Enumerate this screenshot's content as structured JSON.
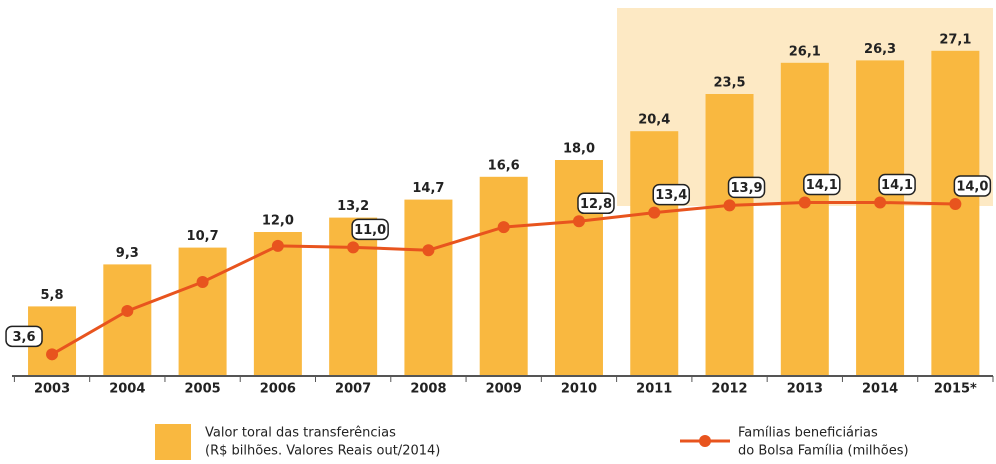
{
  "chart_data": {
    "type": "bar_line",
    "categories": [
      "2003",
      "2004",
      "2005",
      "2006",
      "2007",
      "2008",
      "2009",
      "2010",
      "2011",
      "2012",
      "2013",
      "2014",
      "2015*"
    ],
    "series": [
      {
        "name": [
          "Valor toral das transferências",
          "(R$ bilhões. Valores Reais out/2014)"
        ],
        "type": "bar",
        "color": "#f9b840",
        "values": [
          5.8,
          9.3,
          10.7,
          12.0,
          13.2,
          14.7,
          16.6,
          18.0,
          20.4,
          23.5,
          26.1,
          26.3,
          27.1
        ],
        "value_labels": [
          "5,8",
          "9,3",
          "10,7",
          "12,0",
          "13,2",
          "14,7",
          "16,6",
          "18,0",
          "20,4",
          "23,5",
          "26,1",
          "26,3",
          "27,1"
        ]
      },
      {
        "name": [
          "Famílias beneficiárias",
          "do Bolsa Família (milhões)"
        ],
        "type": "line",
        "axis": "y2",
        "color": "#e8541e",
        "values": [
          3.6,
          6.6,
          8.6,
          11.1,
          11.0,
          10.8,
          12.4,
          12.8,
          13.4,
          13.9,
          14.1,
          14.1,
          14.0
        ],
        "value_labels": [
          "3,6",
          null,
          null,
          null,
          "11,0",
          null,
          null,
          "12,8",
          "13,4",
          "13,9",
          "14,1",
          "14,1",
          "14,0"
        ]
      }
    ],
    "ylim": [
      0,
      30
    ],
    "y2lim": [
      2.1,
      27
    ]
  }
}
